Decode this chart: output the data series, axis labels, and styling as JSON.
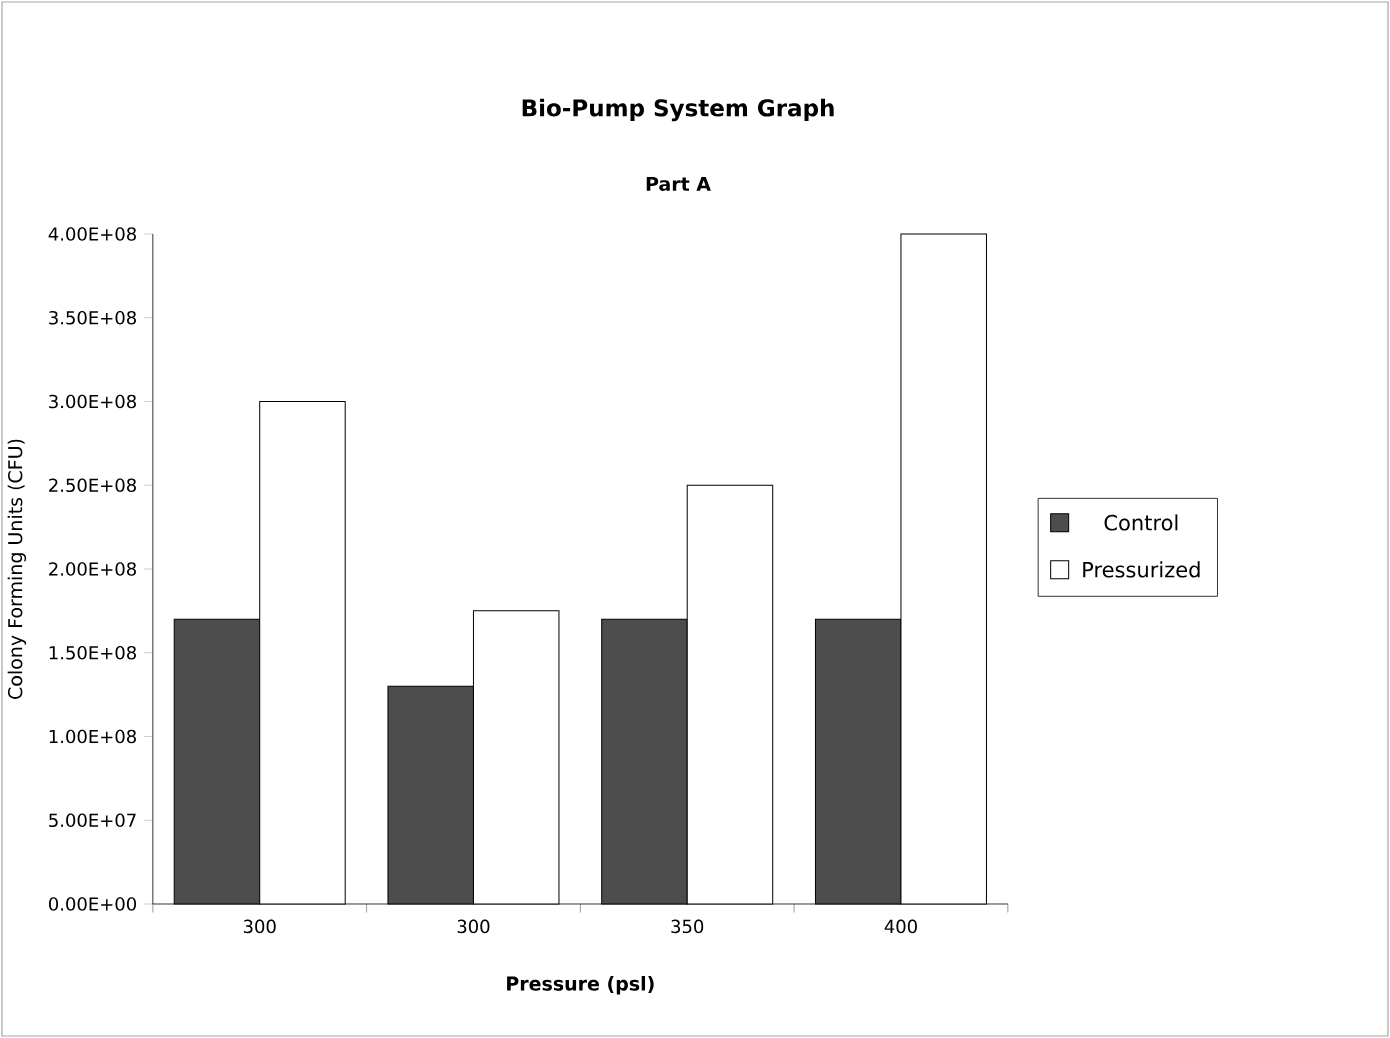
{
  "chart_data": {
    "type": "bar",
    "title": "Bio-Pump System Graph",
    "subtitle": "Part A",
    "xlabel": "Pressure (psl)",
    "ylabel": "Colony Forming Units (CFU)",
    "categories": [
      "300",
      "300",
      "350",
      "400"
    ],
    "series": [
      {
        "name": "Control",
        "color": "#4d4d4d",
        "values": [
          170000000,
          130000000,
          170000000,
          170000000
        ]
      },
      {
        "name": "Pressurized",
        "color": "#ffffff",
        "values": [
          300000000,
          175000000,
          250000000,
          400000000
        ]
      }
    ],
    "ylim": [
      0,
      400000000
    ],
    "yticks": [
      {
        "value": 0,
        "label": "0.00E+00"
      },
      {
        "value": 50000000,
        "label": "5.00E+07"
      },
      {
        "value": 100000000,
        "label": "1.00E+08"
      },
      {
        "value": 150000000,
        "label": "1.50E+08"
      },
      {
        "value": 200000000,
        "label": "2.00E+08"
      },
      {
        "value": 250000000,
        "label": "2.50E+08"
      },
      {
        "value": 300000000,
        "label": "3.00E+08"
      },
      {
        "value": 350000000,
        "label": "3.50E+08"
      },
      {
        "value": 400000000,
        "label": "4.00E+08"
      }
    ],
    "grid": false,
    "legend": "right"
  }
}
